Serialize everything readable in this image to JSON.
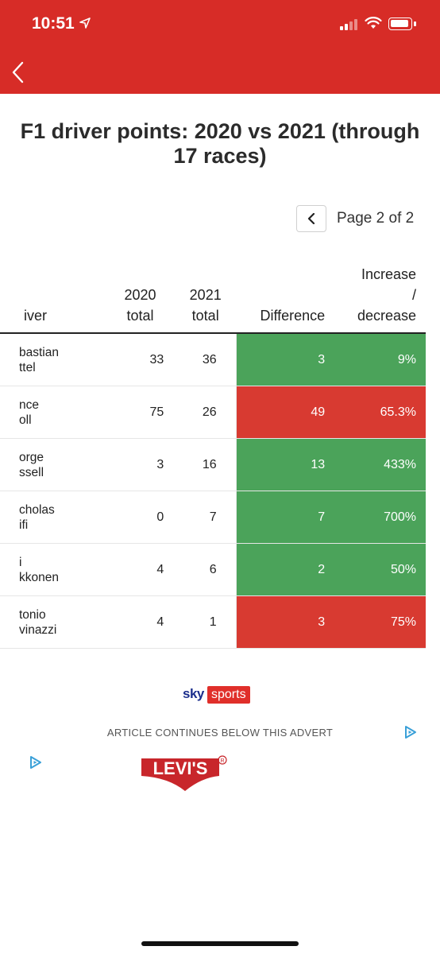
{
  "status_bar": {
    "time": "10:51"
  },
  "article": {
    "title": "F1 driver points: 2020 vs 2021 (through 17 races)",
    "pager": {
      "label": "Page 2 of 2"
    }
  },
  "table": {
    "headers": {
      "driver": "iver",
      "total_2020": [
        "2020",
        "total"
      ],
      "total_2021": [
        "2021",
        "total"
      ],
      "difference": "Difference",
      "change": [
        "Increase",
        "/",
        "decrease"
      ]
    },
    "rows": [
      {
        "driver": [
          "bastian",
          "ttel"
        ],
        "p2020": "33",
        "p2021": "36",
        "diff": "3",
        "pct": "9%",
        "trend": "increase"
      },
      {
        "driver": [
          "nce",
          "oll"
        ],
        "p2020": "75",
        "p2021": "26",
        "diff": "49",
        "pct": "65.3%",
        "trend": "decrease"
      },
      {
        "driver": [
          "orge",
          "ssell"
        ],
        "p2020": "3",
        "p2021": "16",
        "diff": "13",
        "pct": "433%",
        "trend": "increase"
      },
      {
        "driver": [
          "cholas",
          "ifi"
        ],
        "p2020": "0",
        "p2021": "7",
        "diff": "7",
        "pct": "700%",
        "trend": "increase"
      },
      {
        "driver": [
          "i",
          "kkonen"
        ],
        "p2020": "4",
        "p2021": "6",
        "diff": "2",
        "pct": "50%",
        "trend": "increase"
      },
      {
        "driver": [
          "tonio",
          "vinazzi"
        ],
        "p2020": "4",
        "p2021": "1",
        "diff": "3",
        "pct": "75%",
        "trend": "decrease"
      }
    ]
  },
  "branding": {
    "sky": "sky",
    "sports": "sports"
  },
  "advert": {
    "note": "ARTICLE CONTINUES BELOW THIS ADVERT",
    "brand": "LEVI'S"
  },
  "colors": {
    "header_red": "#d72c27",
    "increase_green": "#4ba35a",
    "decrease_red": "#d83a31"
  },
  "icons": {
    "location": "location-arrow-icon",
    "back": "chevron-left-icon",
    "pager": "chevron-left-icon",
    "adchoices": "adchoices-icon"
  }
}
